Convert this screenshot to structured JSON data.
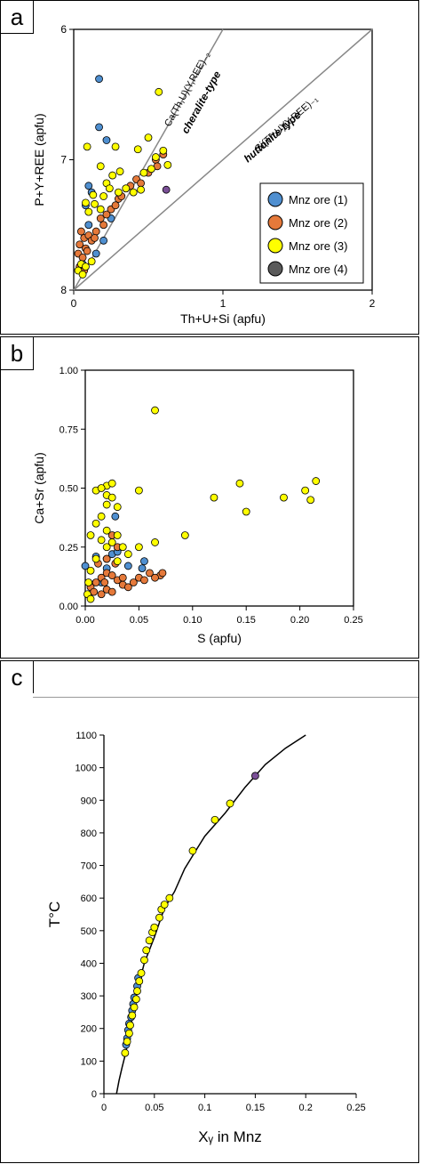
{
  "colors": {
    "s1": "#4f8fd0",
    "s2": "#e5793a",
    "s3": "#ffff00",
    "s4": "#7a4f96",
    "s4legend": "#5a5a5a",
    "refline": "#888888"
  },
  "panels": {
    "a": {
      "label": "a"
    },
    "b": {
      "label": "b"
    },
    "c": {
      "label": "c"
    }
  },
  "chart_data": [
    {
      "id": "a",
      "type": "scatter",
      "xlabel": "Th+U+Si (apfu)",
      "ylabel": "P+Y+REE (apfu)",
      "xlim": [
        0,
        2
      ],
      "ylim": [
        8,
        6
      ],
      "y_inverted": true,
      "xticks": [
        "0",
        "1",
        "2"
      ],
      "yticks": [
        "6",
        "7",
        "8"
      ],
      "annotations": [
        {
          "line1": "Ca(Th,U)(Y,REE)₋₂",
          "line2": "cheralite-type"
        },
        {
          "line1": "Si(Th,U)(Y,REE)₋₁",
          "line2": "huttonite-type"
        }
      ],
      "reference_lines": [
        {
          "name": "cheralite",
          "from": [
            0,
            8
          ],
          "to": [
            1,
            6
          ]
        },
        {
          "name": "huttonite",
          "from": [
            0,
            8
          ],
          "to": [
            2,
            6
          ]
        }
      ],
      "legend_position": "bottom-right",
      "series": [
        {
          "name": "Mnz ore (1)",
          "color_key": "s1",
          "points": [
            [
              0.17,
              6.38
            ],
            [
              0.17,
              6.75
            ],
            [
              0.22,
              6.85
            ],
            [
              0.1,
              7.2
            ],
            [
              0.12,
              7.25
            ],
            [
              0.08,
              7.35
            ],
            [
              0.25,
              7.45
            ],
            [
              0.2,
              7.62
            ],
            [
              0.15,
              7.72
            ],
            [
              0.06,
              7.8
            ],
            [
              0.1,
              7.5
            ]
          ]
        },
        {
          "name": "Mnz ore (2)",
          "color_key": "s2",
          "points": [
            [
              0.05,
              7.55
            ],
            [
              0.07,
              7.6
            ],
            [
              0.1,
              7.58
            ],
            [
              0.04,
              7.65
            ],
            [
              0.08,
              7.68
            ],
            [
              0.12,
              7.62
            ],
            [
              0.03,
              7.72
            ],
            [
              0.06,
              7.75
            ],
            [
              0.09,
              7.7
            ],
            [
              0.15,
              7.55
            ],
            [
              0.2,
              7.5
            ],
            [
              0.22,
              7.42
            ],
            [
              0.18,
              7.45
            ],
            [
              0.25,
              7.38
            ],
            [
              0.3,
              7.3
            ],
            [
              0.32,
              7.28
            ],
            [
              0.35,
              7.22
            ],
            [
              0.38,
              7.2
            ],
            [
              0.42,
              7.15
            ],
            [
              0.5,
              7.1
            ],
            [
              0.55,
              7.0
            ],
            [
              0.56,
              7.05
            ],
            [
              0.6,
              6.96
            ],
            [
              0.45,
              7.18
            ],
            [
              0.28,
              7.35
            ],
            [
              0.14,
              7.6
            ],
            [
              0.04,
              7.82
            ],
            [
              0.07,
              7.85
            ]
          ]
        },
        {
          "name": "Mnz ore (3)",
          "color_key": "s3",
          "points": [
            [
              0.57,
              6.48
            ],
            [
              0.09,
              6.9
            ],
            [
              0.28,
              6.9
            ],
            [
              0.5,
              6.83
            ],
            [
              0.43,
              6.92
            ],
            [
              0.6,
              6.93
            ],
            [
              0.63,
              7.04
            ],
            [
              0.18,
              7.05
            ],
            [
              0.31,
              7.09
            ],
            [
              0.52,
              7.07
            ],
            [
              0.22,
              7.18
            ],
            [
              0.26,
              7.12
            ],
            [
              0.13,
              7.27
            ],
            [
              0.2,
              7.28
            ],
            [
              0.24,
              7.22
            ],
            [
              0.35,
              7.22
            ],
            [
              0.4,
              7.25
            ],
            [
              0.45,
              7.23
            ],
            [
              0.08,
              7.33
            ],
            [
              0.14,
              7.34
            ],
            [
              0.1,
              7.4
            ],
            [
              0.18,
              7.38
            ],
            [
              0.05,
              7.8
            ],
            [
              0.08,
              7.82
            ],
            [
              0.12,
              7.78
            ],
            [
              0.03,
              7.85
            ],
            [
              0.06,
              7.88
            ],
            [
              0.55,
              6.98
            ],
            [
              0.47,
              7.1
            ],
            [
              0.3,
              7.25
            ]
          ]
        },
        {
          "name": "Mnz ore (4)",
          "color_key": "s4",
          "points": [
            [
              0.62,
              7.23
            ]
          ]
        }
      ]
    },
    {
      "id": "b",
      "type": "scatter",
      "xlabel": "S (apfu)",
      "ylabel": "Ca+Sr (apfu)",
      "xlim": [
        0,
        0.25
      ],
      "ylim": [
        0,
        1
      ],
      "xticks": [
        "0.00",
        "0.05",
        "0.10",
        "0.15",
        "0.20",
        "0.25"
      ],
      "yticks": [
        "0.00",
        "0.25",
        "0.50",
        "0.75",
        "1.00"
      ],
      "series": [
        {
          "name": "Mnz ore (1)",
          "color_key": "s1",
          "points": [
            [
              0.0,
              0.17
            ],
            [
              0.01,
              0.21
            ],
            [
              0.02,
              0.2
            ],
            [
              0.025,
              0.22
            ],
            [
              0.03,
              0.23
            ],
            [
              0.02,
              0.16
            ],
            [
              0.04,
              0.17
            ],
            [
              0.053,
              0.16
            ],
            [
              0.028,
              0.38
            ],
            [
              0.015,
              0.1
            ],
            [
              0.055,
              0.19
            ]
          ]
        },
        {
          "name": "Mnz ore (2)",
          "color_key": "s2",
          "points": [
            [
              0.005,
              0.08
            ],
            [
              0.01,
              0.1
            ],
            [
              0.015,
              0.12
            ],
            [
              0.02,
              0.14
            ],
            [
              0.025,
              0.13
            ],
            [
              0.03,
              0.11
            ],
            [
              0.035,
              0.09
            ],
            [
              0.02,
              0.07
            ],
            [
              0.015,
              0.05
            ],
            [
              0.025,
              0.06
            ],
            [
              0.04,
              0.08
            ],
            [
              0.045,
              0.1
            ],
            [
              0.05,
              0.12
            ],
            [
              0.06,
              0.14
            ],
            [
              0.07,
              0.13
            ],
            [
              0.072,
              0.14
            ],
            [
              0.03,
              0.25
            ],
            [
              0.025,
              0.3
            ],
            [
              0.02,
              0.2
            ],
            [
              0.012,
              0.18
            ],
            [
              0.008,
              0.06
            ],
            [
              0.035,
              0.12
            ],
            [
              0.055,
              0.11
            ],
            [
              0.065,
              0.12
            ],
            [
              0.028,
              0.18
            ],
            [
              0.018,
              0.1
            ]
          ]
        },
        {
          "name": "Mnz ore (3)",
          "color_key": "s3",
          "points": [
            [
              0.065,
              0.83
            ],
            [
              0.144,
              0.52
            ],
            [
              0.215,
              0.53
            ],
            [
              0.205,
              0.49
            ],
            [
              0.12,
              0.46
            ],
            [
              0.185,
              0.46
            ],
            [
              0.21,
              0.45
            ],
            [
              0.15,
              0.4
            ],
            [
              0.093,
              0.3
            ],
            [
              0.065,
              0.27
            ],
            [
              0.05,
              0.49
            ],
            [
              0.02,
              0.51
            ],
            [
              0.025,
              0.52
            ],
            [
              0.01,
              0.49
            ],
            [
              0.015,
              0.5
            ],
            [
              0.02,
              0.47
            ],
            [
              0.025,
              0.46
            ],
            [
              0.02,
              0.43
            ],
            [
              0.015,
              0.38
            ],
            [
              0.01,
              0.35
            ],
            [
              0.02,
              0.32
            ],
            [
              0.03,
              0.3
            ],
            [
              0.005,
              0.3
            ],
            [
              0.015,
              0.28
            ],
            [
              0.025,
              0.27
            ],
            [
              0.035,
              0.25
            ],
            [
              0.05,
              0.25
            ],
            [
              0.04,
              0.22
            ],
            [
              0.03,
              0.19
            ],
            [
              0.01,
              0.2
            ],
            [
              0.005,
              0.15
            ],
            [
              0.003,
              0.1
            ],
            [
              0.002,
              0.05
            ],
            [
              0.005,
              0.03
            ],
            [
              0.02,
              0.25
            ],
            [
              0.03,
              0.42
            ]
          ]
        },
        {
          "name": "Mnz ore (4)",
          "color_key": "s4",
          "points": []
        }
      ]
    },
    {
      "id": "c",
      "type": "scatter",
      "xlabel": "Xᵧ in Mnz",
      "ylabel": "T°C",
      "xlim": [
        0,
        0.25
      ],
      "ylim": [
        0,
        1100
      ],
      "xticks": [
        "0",
        "0.05",
        "0.1",
        "0.15",
        "0.2",
        "0.25"
      ],
      "yticks": [
        "0",
        "100",
        "200",
        "300",
        "400",
        "500",
        "600",
        "700",
        "800",
        "900",
        "1000",
        "1100"
      ],
      "curve": [
        [
          0.0125,
          0
        ],
        [
          0.015,
          40
        ],
        [
          0.018,
          80
        ],
        [
          0.022,
          130
        ],
        [
          0.026,
          200
        ],
        [
          0.03,
          270
        ],
        [
          0.035,
          340
        ],
        [
          0.04,
          400
        ],
        [
          0.05,
          480
        ],
        [
          0.06,
          570
        ],
        [
          0.07,
          620
        ],
        [
          0.08,
          690
        ],
        [
          0.09,
          740
        ],
        [
          0.1,
          790
        ],
        [
          0.12,
          860
        ],
        [
          0.14,
          940
        ],
        [
          0.16,
          1010
        ],
        [
          0.18,
          1060
        ],
        [
          0.2,
          1100
        ]
      ],
      "series": [
        {
          "name": "Mnz ore (1)",
          "color_key": "s1",
          "points": [
            [
              0.022,
              150
            ],
            [
              0.023,
              170
            ],
            [
              0.024,
              195
            ],
            [
              0.025,
              215
            ],
            [
              0.027,
              235
            ],
            [
              0.028,
              255
            ],
            [
              0.029,
              275
            ],
            [
              0.03,
              295
            ],
            [
              0.033,
              330
            ],
            [
              0.034,
              355
            ]
          ]
        },
        {
          "name": "Mnz ore (2)",
          "color_key": "s2",
          "points": []
        },
        {
          "name": "Mnz ore (3)",
          "color_key": "s3",
          "points": [
            [
              0.021,
              125
            ],
            [
              0.023,
              160
            ],
            [
              0.025,
              185
            ],
            [
              0.026,
              210
            ],
            [
              0.028,
              240
            ],
            [
              0.03,
              265
            ],
            [
              0.032,
              290
            ],
            [
              0.033,
              315
            ],
            [
              0.035,
              345
            ],
            [
              0.037,
              370
            ],
            [
              0.04,
              410
            ],
            [
              0.042,
              440
            ],
            [
              0.045,
              470
            ],
            [
              0.048,
              495
            ],
            [
              0.05,
              510
            ],
            [
              0.055,
              540
            ],
            [
              0.057,
              565
            ],
            [
              0.06,
              580
            ],
            [
              0.065,
              600
            ],
            [
              0.088,
              745
            ],
            [
              0.11,
              840
            ],
            [
              0.125,
              890
            ]
          ]
        },
        {
          "name": "Mnz ore (4)",
          "color_key": "s4",
          "points": [
            [
              0.15,
              975
            ]
          ]
        }
      ]
    }
  ]
}
